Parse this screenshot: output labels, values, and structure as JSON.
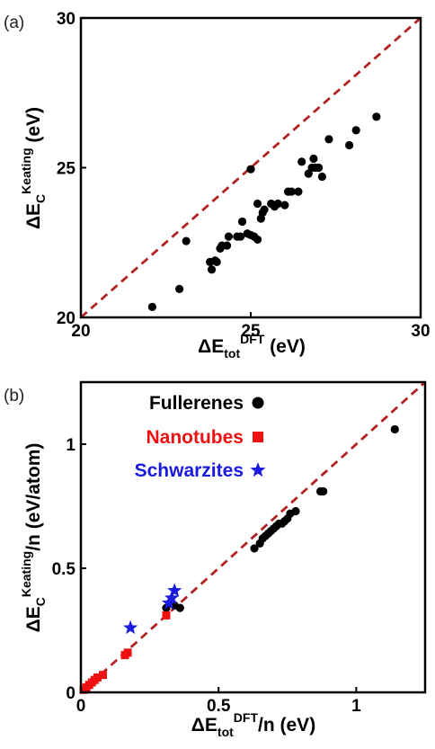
{
  "chart_data": [
    {
      "type": "scatter",
      "panel_label": "(a)",
      "xlabel": {
        "main": "ΔE",
        "sub": "tot",
        "sup": "DFT",
        "suffix": " (eV)"
      },
      "ylabel": {
        "main": "ΔE",
        "sub": "C",
        "sup": "Keating",
        "suffix": " (eV)"
      },
      "xlim": [
        20,
        30
      ],
      "ylim": [
        20,
        30
      ],
      "xticks": [
        "20",
        "25",
        "30"
      ],
      "yticks": [
        "20",
        "25",
        "30"
      ],
      "reference_line": {
        "style": "dashed",
        "color": "#b22222",
        "from": [
          20,
          20
        ],
        "to": [
          30,
          30
        ]
      },
      "series": [
        {
          "color": "#000000",
          "marker": "circle",
          "x": [
            22.1,
            22.9,
            23.1,
            23.8,
            23.85,
            23.95,
            24.0,
            24.1,
            24.15,
            24.3,
            24.35,
            24.6,
            24.7,
            24.75,
            24.9,
            25.0,
            25.1,
            25.2,
            25.2,
            25.3,
            25.35,
            25.4,
            25.6,
            25.7,
            25.8,
            26.0,
            26.1,
            26.2,
            26.4,
            26.5,
            26.7,
            26.8,
            26.85,
            26.9,
            27.0,
            27.1,
            27.3,
            27.9,
            28.1,
            28.7,
            25.0
          ],
          "y": [
            20.35,
            20.95,
            22.55,
            21.85,
            21.6,
            21.9,
            21.85,
            22.3,
            22.4,
            22.4,
            22.7,
            22.7,
            22.7,
            23.2,
            22.8,
            22.75,
            22.7,
            22.6,
            23.8,
            23.3,
            23.5,
            23.6,
            23.8,
            23.7,
            23.8,
            23.75,
            24.2,
            24.2,
            24.2,
            25.2,
            24.8,
            25.0,
            25.3,
            25.0,
            25.0,
            24.7,
            25.95,
            25.75,
            26.25,
            26.7,
            24.95
          ]
        }
      ]
    },
    {
      "type": "scatter",
      "panel_label": "(b)",
      "xlabel": {
        "main": "ΔE",
        "sub": "tot",
        "sup": "DFT",
        "suffix": "/n (eV)"
      },
      "ylabel": {
        "main": "ΔE",
        "sub": "C",
        "sup": "Keating",
        "suffix": "/n (eV/atom)"
      },
      "xlim": [
        0,
        1.25
      ],
      "ylim": [
        0,
        1.25
      ],
      "xticks": [
        "0",
        "0.5",
        "1"
      ],
      "yticks": [
        "0",
        "0.5",
        "1"
      ],
      "legend_position": "top-left",
      "reference_line": {
        "style": "dashed",
        "color": "#b22222",
        "from": [
          0,
          0
        ],
        "to": [
          1.25,
          1.25
        ]
      },
      "series": [
        {
          "name": "Fullerenes",
          "color": "#000000",
          "marker": "circle",
          "x": [
            0.31,
            0.34,
            0.36,
            0.63,
            0.65,
            0.66,
            0.67,
            0.68,
            0.69,
            0.7,
            0.71,
            0.72,
            0.73,
            0.74,
            0.75,
            0.76,
            0.78,
            0.87,
            0.88,
            1.14
          ],
          "y": [
            0.34,
            0.35,
            0.34,
            0.58,
            0.6,
            0.62,
            0.63,
            0.64,
            0.65,
            0.66,
            0.67,
            0.68,
            0.68,
            0.69,
            0.7,
            0.72,
            0.73,
            0.81,
            0.81,
            1.06
          ]
        },
        {
          "name": "Nanotubes",
          "color": "#ee1111",
          "marker": "square",
          "x": [
            0.01,
            0.02,
            0.03,
            0.04,
            0.05,
            0.06,
            0.08,
            0.16,
            0.17,
            0.31
          ],
          "y": [
            0.01,
            0.02,
            0.03,
            0.04,
            0.05,
            0.06,
            0.07,
            0.15,
            0.16,
            0.31
          ]
        },
        {
          "name": "Schwarzites",
          "color": "#1a1adf",
          "marker": "star",
          "x": [
            0.18,
            0.32,
            0.33,
            0.34
          ],
          "y": [
            0.26,
            0.36,
            0.38,
            0.41
          ]
        }
      ]
    }
  ]
}
